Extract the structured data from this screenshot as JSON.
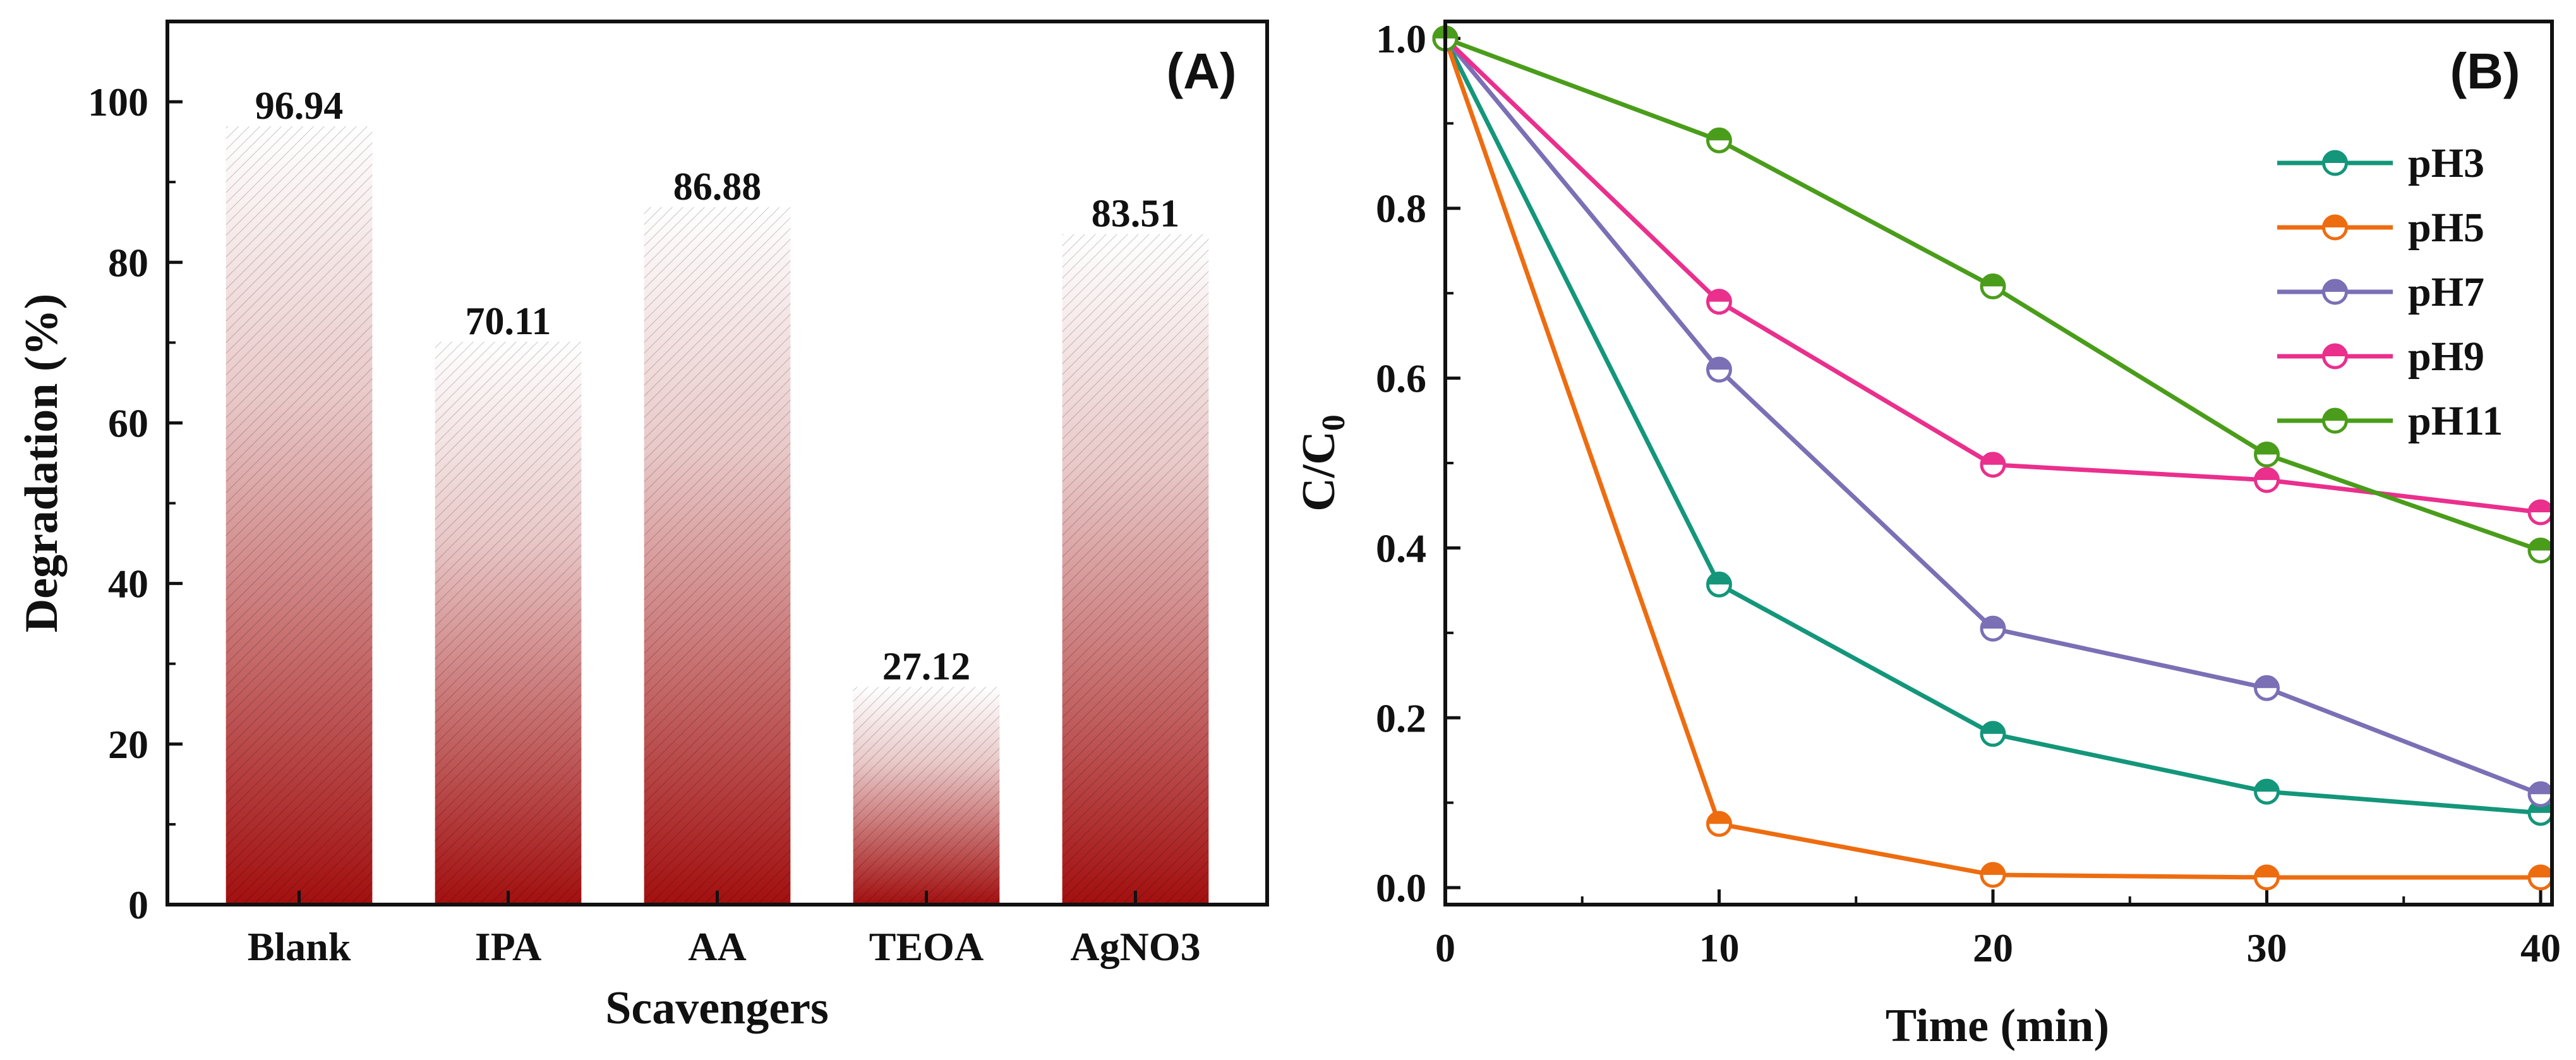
{
  "chart_data": [
    {
      "type": "bar",
      "panel": "(A)",
      "xlabel": "Scavengers",
      "ylabel": "Degradation (%)",
      "ylim": [
        0,
        110
      ],
      "yticks": [
        0,
        20,
        40,
        60,
        80,
        100
      ],
      "categories": [
        "Blank",
        "IPA",
        "AA",
        "TEOA",
        "AgNO3"
      ],
      "values": [
        96.94,
        70.11,
        86.88,
        27.12,
        83.51
      ],
      "value_labels": [
        "96.94",
        "70.11",
        "86.88",
        "27.12",
        "83.51"
      ],
      "bar_color": "#a30f0f"
    },
    {
      "type": "line",
      "panel": "(B)",
      "xlabel": "Time (min)",
      "ylabel_main": "C/C",
      "ylabel_sub": "0",
      "xlim": [
        0,
        40
      ],
      "ylim": [
        -0.02,
        1.02
      ],
      "xticks": [
        0,
        10,
        20,
        30,
        40
      ],
      "yticks": [
        0.0,
        0.2,
        0.4,
        0.6,
        0.8,
        1.0
      ],
      "ytick_labels": [
        "0.0",
        "0.2",
        "0.4",
        "0.6",
        "0.8",
        "1.0"
      ],
      "x": [
        0,
        10,
        20,
        30,
        40
      ],
      "series": [
        {
          "name": "pH3",
          "color": "#13967a",
          "values": [
            1.0,
            0.357,
            0.181,
            0.113,
            0.088
          ]
        },
        {
          "name": "pH5",
          "color": "#ee6c10",
          "values": [
            1.0,
            0.075,
            0.015,
            0.012,
            0.012
          ]
        },
        {
          "name": "pH7",
          "color": "#7b6fb5",
          "values": [
            1.0,
            0.61,
            0.305,
            0.235,
            0.11
          ]
        },
        {
          "name": "pH9",
          "color": "#ea2f8d",
          "values": [
            1.0,
            0.69,
            0.498,
            0.48,
            0.442
          ]
        },
        {
          "name": "pH11",
          "color": "#4a9d1a",
          "values": [
            1.0,
            0.88,
            0.708,
            0.51,
            0.397
          ]
        }
      ]
    }
  ]
}
